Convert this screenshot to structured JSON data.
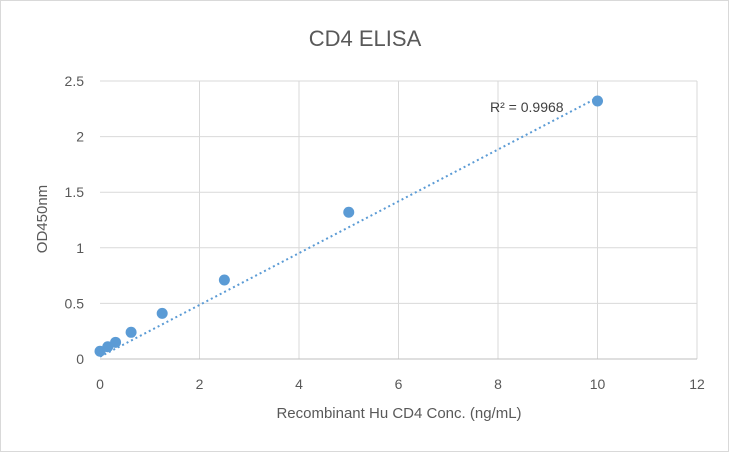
{
  "chart_data": {
    "type": "scatter",
    "title": "CD4 ELISA",
    "xlabel": "Recombinant Hu CD4 Conc. (ng/mL)",
    "ylabel": "OD450nm",
    "xlim": [
      0,
      12
    ],
    "ylim": [
      0,
      2.5
    ],
    "x_ticks": [
      "0",
      "2",
      "4",
      "6",
      "8",
      "10",
      "12"
    ],
    "y_ticks": [
      "0",
      "0.5",
      "1",
      "1.5",
      "2",
      "2.5"
    ],
    "grid": true,
    "legend": "none",
    "series": [
      {
        "color": "#5b9bd5",
        "x": [
          0,
          0.156,
          0.313,
          0.625,
          1.25,
          2.5,
          5,
          10
        ],
        "y": [
          0.07,
          0.11,
          0.15,
          0.24,
          0.41,
          0.71,
          1.32,
          2.32
        ]
      }
    ],
    "trendline": {
      "style": "dotted",
      "x": [
        0,
        10
      ],
      "y": [
        0.02,
        2.35
      ]
    },
    "annotation": "R² = 0.9968"
  }
}
